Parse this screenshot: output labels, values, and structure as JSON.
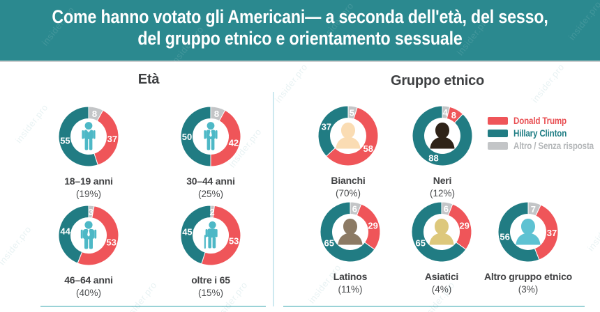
{
  "header": {
    "title_line1": "Come hanno votato gli Americani— a seconda dell'età, del sesso,",
    "title_line2": "del gruppo etnico e orientamento sessuale"
  },
  "watermark_text": "insider.pro",
  "legend": {
    "items": [
      {
        "id": "trump",
        "label": "Donald Trump",
        "color": "#ef5559",
        "text_color": "#e84e52"
      },
      {
        "id": "clinton",
        "label": "Hillary Clinton",
        "color": "#217c83",
        "text_color": "#1f7d84"
      },
      {
        "id": "other",
        "label": "Altro / Senza risposta",
        "color": "#c3c5c7",
        "text_color": "#b3b6b8"
      }
    ]
  },
  "chart_data": {
    "type": "pie",
    "variant": "donut-grid",
    "segment_order": [
      "other",
      "trump",
      "clinton"
    ],
    "colors": {
      "trump": "#ef5559",
      "clinton": "#217c83",
      "other": "#c3c5c7"
    },
    "sections": [
      {
        "title": "Età",
        "charts": [
          {
            "label": "18–19 anni",
            "share": "(19%)",
            "icon": "young-man",
            "icon_color": "#4db8c6",
            "values": {
              "clinton": 55,
              "trump": 37,
              "other": 8
            }
          },
          {
            "label": "30–44 anni",
            "share": "(25%)",
            "icon": "man-tie",
            "icon_color": "#4db8c6",
            "values": {
              "clinton": 50,
              "trump": 42,
              "other": 8
            }
          },
          {
            "label": "46–64 anni",
            "share": "(40%)",
            "icon": "man-suit",
            "icon_color": "#4db8c6",
            "values": {
              "clinton": 44,
              "trump": 53,
              "other": 3
            }
          },
          {
            "label": "oltre i 65",
            "share": "(15%)",
            "icon": "elderly-cane",
            "icon_color": "#4db8c6",
            "values": {
              "clinton": 45,
              "trump": 53,
              "other": 2
            }
          }
        ]
      },
      {
        "title": "Gruppo etnico",
        "charts": [
          {
            "label": "Bianchi",
            "share": "(70%)",
            "icon": "bust",
            "icon_color": "#fadcb3",
            "values": {
              "clinton": 37,
              "trump": 58,
              "other": 5
            }
          },
          {
            "label": "Neri",
            "share": "(12%)",
            "icon": "bust",
            "icon_color": "#2f2318",
            "values": {
              "clinton": 88,
              "trump": 8,
              "other": 4
            }
          },
          {
            "label": "Latinos",
            "share": "(11%)",
            "icon": "bust",
            "icon_color": "#8c7a64",
            "values": {
              "clinton": 65,
              "trump": 29,
              "other": 6
            }
          },
          {
            "label": "Asiatici",
            "share": "(4%)",
            "icon": "bust",
            "icon_color": "#ddc87c",
            "values": {
              "clinton": 65,
              "trump": 29,
              "other": 6
            }
          },
          {
            "label": "Altro gruppo etnico",
            "share": "(3%)",
            "icon": "bust",
            "icon_color": "#5ec2d2",
            "values": {
              "clinton": 56,
              "trump": 37,
              "other": 7
            }
          }
        ]
      }
    ]
  }
}
